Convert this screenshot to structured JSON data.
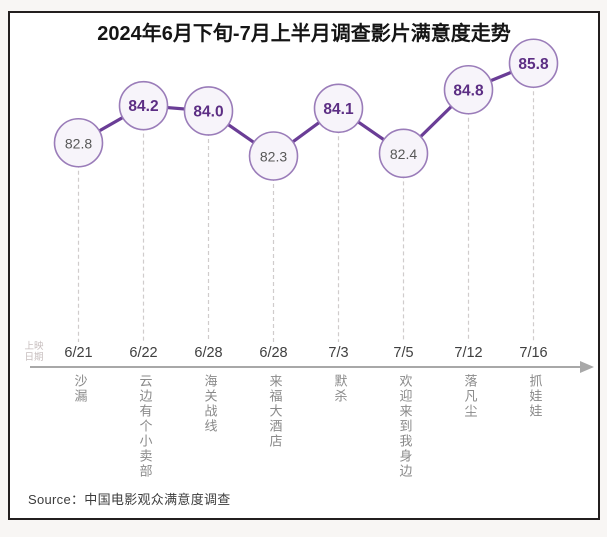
{
  "chart_data": {
    "type": "line",
    "title": "2024年6月下旬-7月上半月调查影片满意度走势",
    "x_axis_label": "上映日期",
    "x_axis_label_lines": [
      "上映",
      "日期"
    ],
    "points": [
      {
        "date": "6/21",
        "movie": "沙漏",
        "value": 82.8
      },
      {
        "date": "6/22",
        "movie": "云边有个小卖部",
        "value": 84.2
      },
      {
        "date": "6/28",
        "movie": "海关战线",
        "value": 84.0
      },
      {
        "date": "6/28",
        "movie": "来福大酒店",
        "value": 82.3
      },
      {
        "date": "7/3",
        "movie": "默杀",
        "value": 84.1
      },
      {
        "date": "7/5",
        "movie": "欢迎来到我身边",
        "value": 82.4
      },
      {
        "date": "7/12",
        "movie": "落凡尘",
        "value": 84.8
      },
      {
        "date": "7/16",
        "movie": "抓娃娃",
        "value": 85.8
      }
    ],
    "highlight_threshold": 84.0,
    "value_axis_range": [
      81.8,
      86.5
    ],
    "grid": "dashed-vertical-droplines",
    "legend": "none",
    "colors": {
      "line": "#6a3d96",
      "circle_fill": "#f7f4fa",
      "circle_stroke": "#9a7cb9",
      "value_high_text": "#5c2e84",
      "value_low_text": "#585858",
      "axis": "#a8a8a8",
      "dropline": "#d0cccc",
      "date_text": "#3f3f3f",
      "movie_text": "#8a8a8a",
      "axis_caption": "#c7bebe"
    }
  },
  "footer": {
    "source": "Source：中国电影观众满意度调查"
  }
}
